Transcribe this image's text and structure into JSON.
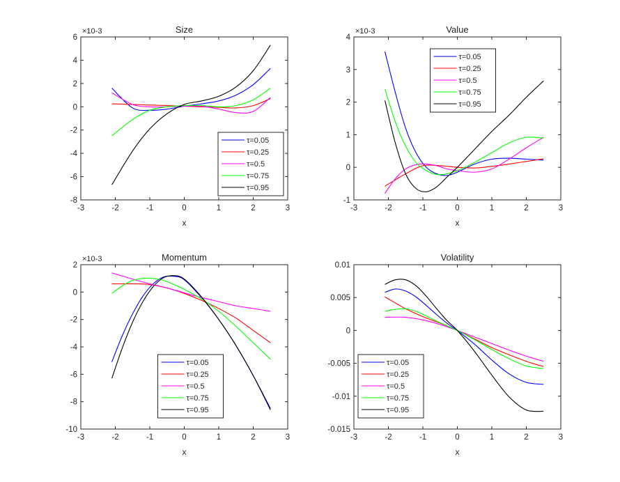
{
  "chart_data": [
    {
      "type": "line",
      "title": "Size",
      "xlabel": "x",
      "ylabel": "",
      "exponent": "×10-3",
      "xlim": [
        -3,
        3
      ],
      "ylim": [
        -8,
        6
      ],
      "xticks": [
        "-3",
        "-2",
        "-1",
        "0",
        "1",
        "2",
        "3"
      ],
      "yticks": [
        "-8",
        "-6",
        "-4",
        "-2",
        "0",
        "2",
        "4",
        "6"
      ],
      "legend_position": "bottom-right",
      "series": [
        {
          "name": "τ=0.05",
          "color": "#0000ff",
          "x": [
            -2.1,
            -1.5,
            -1,
            -0.5,
            0,
            0.5,
            1,
            1.5,
            2,
            2.5
          ],
          "y": [
            1.6,
            -0.1,
            -0.3,
            -0.2,
            0.05,
            0.25,
            0.5,
            1.0,
            1.9,
            3.3
          ]
        },
        {
          "name": "τ=0.25",
          "color": "#ff0000",
          "x": [
            -2.1,
            -1.5,
            -1,
            -0.5,
            0,
            0.5,
            1,
            1.5,
            2,
            2.5
          ],
          "y": [
            0.25,
            0.2,
            0.15,
            0.1,
            0.05,
            0.0,
            -0.05,
            -0.1,
            0.1,
            0.7
          ]
        },
        {
          "name": "τ=0.5",
          "color": "#ff00ff",
          "x": [
            -2.1,
            -1.5,
            -1,
            -0.5,
            0,
            0.5,
            1,
            1.5,
            2,
            2.5
          ],
          "y": [
            1.2,
            0.2,
            0.0,
            0.0,
            0.05,
            0.05,
            -0.2,
            -0.5,
            -0.4,
            0.8
          ]
        },
        {
          "name": "τ=0.75",
          "color": "#00ff00",
          "x": [
            -2.1,
            -1.5,
            -1,
            -0.5,
            0,
            0.5,
            1,
            1.5,
            2,
            2.5
          ],
          "y": [
            -2.5,
            -1.1,
            -0.3,
            0.0,
            0.1,
            0.1,
            0.0,
            0.1,
            0.6,
            1.6
          ]
        },
        {
          "name": "τ=0.95",
          "color": "#000000",
          "x": [
            -2.1,
            -1.5,
            -1,
            -0.5,
            0,
            0.5,
            1,
            1.5,
            2,
            2.5
          ],
          "y": [
            -6.7,
            -3.8,
            -1.9,
            -0.6,
            0.2,
            0.5,
            0.9,
            1.7,
            3.1,
            5.3
          ]
        }
      ]
    },
    {
      "type": "line",
      "title": "Value",
      "xlabel": "x",
      "ylabel": "",
      "exponent": "×10-3",
      "xlim": [
        -3,
        3
      ],
      "ylim": [
        -1,
        4
      ],
      "xticks": [
        "-3",
        "-2",
        "-1",
        "0",
        "1",
        "2",
        "3"
      ],
      "yticks": [
        "-1",
        "0",
        "1",
        "2",
        "3",
        "4"
      ],
      "legend_position": "top-center",
      "series": [
        {
          "name": "τ=0.05",
          "color": "#0000ff",
          "x": [
            -2.1,
            -1.8,
            -1.5,
            -1.2,
            -0.9,
            -0.6,
            -0.3,
            0,
            0.5,
            1,
            1.5,
            2,
            2.5
          ],
          "y": [
            3.55,
            2.3,
            1.2,
            0.45,
            0.0,
            -0.2,
            -0.25,
            -0.15,
            0.1,
            0.25,
            0.28,
            0.25,
            0.22
          ]
        },
        {
          "name": "τ=0.25",
          "color": "#ff0000",
          "x": [
            -2.1,
            -1.5,
            -1,
            -0.5,
            0,
            0.5,
            1,
            1.5,
            2,
            2.5
          ],
          "y": [
            -0.58,
            -0.2,
            0.05,
            0.05,
            0.0,
            -0.02,
            0.03,
            0.1,
            0.18,
            0.26
          ]
        },
        {
          "name": "τ=0.5",
          "color": "#ff00ff",
          "x": [
            -2.1,
            -1.8,
            -1.5,
            -1.2,
            -0.9,
            -0.6,
            -0.3,
            0,
            0.5,
            1,
            1.5,
            2,
            2.5
          ],
          "y": [
            -0.8,
            -0.35,
            -0.05,
            0.08,
            0.1,
            0.05,
            -0.05,
            -0.1,
            -0.15,
            -0.05,
            0.25,
            0.6,
            0.92
          ]
        },
        {
          "name": "τ=0.75",
          "color": "#00ff00",
          "x": [
            -2.1,
            -1.8,
            -1.5,
            -1.2,
            -0.9,
            -0.6,
            -0.3,
            0,
            0.5,
            1,
            1.5,
            2,
            2.5
          ],
          "y": [
            2.4,
            1.4,
            0.65,
            0.15,
            -0.1,
            -0.22,
            -0.2,
            -0.1,
            0.15,
            0.45,
            0.75,
            0.92,
            0.9
          ]
        },
        {
          "name": "τ=0.95",
          "color": "#000000",
          "x": [
            -2.1,
            -1.8,
            -1.5,
            -1.2,
            -0.9,
            -0.6,
            -0.3,
            0,
            0.5,
            1,
            1.5,
            2,
            2.5
          ],
          "y": [
            2.05,
            0.75,
            -0.2,
            -0.65,
            -0.75,
            -0.6,
            -0.3,
            0.0,
            0.55,
            1.1,
            1.6,
            2.15,
            2.65
          ]
        }
      ]
    },
    {
      "type": "line",
      "title": "Momentum",
      "xlabel": "x",
      "ylabel": "",
      "exponent": "×10-3",
      "xlim": [
        -3,
        3
      ],
      "ylim": [
        -10,
        2
      ],
      "xticks": [
        "-3",
        "-2",
        "-1",
        "0",
        "1",
        "2",
        "3"
      ],
      "yticks": [
        "-10",
        "-8",
        "-6",
        "-4",
        "-2",
        "0",
        "2"
      ],
      "legend_position": "bottom-center",
      "series": [
        {
          "name": "τ=0.05",
          "color": "#0000ff",
          "x": [
            -2.1,
            -1.8,
            -1.5,
            -1.2,
            -0.9,
            -0.6,
            -0.3,
            0,
            0.5,
            1,
            1.5,
            2,
            2.5
          ],
          "y": [
            -5.1,
            -3.2,
            -1.6,
            -0.3,
            0.6,
            1.1,
            1.15,
            0.9,
            -0.4,
            -2.0,
            -3.9,
            -6.1,
            -8.5
          ]
        },
        {
          "name": "τ=0.25",
          "color": "#ff0000",
          "x": [
            -2.1,
            -1.5,
            -1,
            -0.5,
            0,
            0.5,
            1,
            1.5,
            2,
            2.5
          ],
          "y": [
            0.6,
            0.6,
            0.55,
            0.3,
            -0.1,
            -0.6,
            -1.2,
            -1.9,
            -2.8,
            -3.7
          ]
        },
        {
          "name": "τ=0.5",
          "color": "#ff00ff",
          "x": [
            -2.1,
            -1.5,
            -1,
            -0.5,
            0,
            0.5,
            1,
            1.5,
            2,
            2.5
          ],
          "y": [
            1.4,
            0.95,
            0.6,
            0.3,
            -0.05,
            -0.4,
            -0.7,
            -1.0,
            -1.2,
            -1.4
          ]
        },
        {
          "name": "τ=0.75",
          "color": "#00ff00",
          "x": [
            -2.1,
            -1.8,
            -1.5,
            -1.2,
            -0.9,
            -0.6,
            -0.3,
            0,
            0.5,
            1,
            1.5,
            2,
            2.5
          ],
          "y": [
            -0.1,
            0.45,
            0.85,
            1.0,
            1.0,
            0.85,
            0.55,
            0.2,
            -0.5,
            -1.4,
            -2.5,
            -3.7,
            -4.9
          ]
        },
        {
          "name": "τ=0.95",
          "color": "#000000",
          "x": [
            -2.1,
            -1.8,
            -1.5,
            -1.2,
            -0.9,
            -0.6,
            -0.3,
            0,
            0.5,
            1,
            1.5,
            2,
            2.5
          ],
          "y": [
            -6.3,
            -4.1,
            -2.2,
            -0.7,
            0.4,
            1.05,
            1.2,
            0.95,
            -0.35,
            -2.0,
            -3.9,
            -6.1,
            -8.6
          ]
        }
      ]
    },
    {
      "type": "line",
      "title": "Volatility",
      "xlabel": "x",
      "ylabel": "",
      "exponent": "",
      "xlim": [
        -3,
        3
      ],
      "ylim": [
        -0.015,
        0.01
      ],
      "xticks": [
        "-3",
        "-2",
        "-1",
        "0",
        "1",
        "2",
        "3"
      ],
      "yticks": [
        "-0.015",
        "-0.01",
        "-0.005",
        "0",
        "0.005",
        "0.01"
      ],
      "legend_position": "bottom-left",
      "series": [
        {
          "name": "τ=0.05",
          "color": "#0000ff",
          "x": [
            -2.1,
            -1.8,
            -1.5,
            -1.2,
            -0.9,
            -0.6,
            -0.3,
            0,
            0.5,
            1,
            1.5,
            2,
            2.5
          ],
          "y": [
            0.0058,
            0.0063,
            0.006,
            0.0051,
            0.0038,
            0.0024,
            0.0011,
            0.0,
            -0.0021,
            -0.0045,
            -0.0066,
            -0.0079,
            -0.0082
          ]
        },
        {
          "name": "τ=0.25",
          "color": "#ff0000",
          "x": [
            -2.1,
            -1.5,
            -1,
            -0.5,
            0,
            0.5,
            1,
            1.5,
            2,
            2.5
          ],
          "y": [
            0.0051,
            0.0033,
            0.0021,
            0.0011,
            0.0,
            -0.0013,
            -0.0026,
            -0.0037,
            -0.0047,
            -0.0055
          ]
        },
        {
          "name": "τ=0.5",
          "color": "#ff00ff",
          "x": [
            -2.1,
            -1.5,
            -1,
            -0.5,
            0,
            0.5,
            1,
            1.5,
            2,
            2.5
          ],
          "y": [
            0.002,
            0.002,
            0.0016,
            0.0009,
            0.0,
            -0.001,
            -0.002,
            -0.003,
            -0.0039,
            -0.0047
          ]
        },
        {
          "name": "τ=0.75",
          "color": "#00ff00",
          "x": [
            -2.1,
            -1.8,
            -1.5,
            -1.2,
            -0.9,
            -0.6,
            -0.3,
            0,
            0.5,
            1,
            1.5,
            2,
            2.5
          ],
          "y": [
            0.0029,
            0.0032,
            0.0033,
            0.0029,
            0.0022,
            0.0014,
            0.0007,
            0.0,
            -0.0014,
            -0.0029,
            -0.0043,
            -0.0054,
            -0.0058
          ]
        },
        {
          "name": "τ=0.95",
          "color": "#000000",
          "x": [
            -2.1,
            -1.8,
            -1.5,
            -1.2,
            -0.9,
            -0.6,
            -0.3,
            0,
            0.5,
            1,
            1.5,
            2,
            2.5
          ],
          "y": [
            0.007,
            0.0077,
            0.0077,
            0.0068,
            0.0052,
            0.0033,
            0.0015,
            0.0,
            -0.0032,
            -0.0068,
            -0.0101,
            -0.0121,
            -0.0123
          ]
        }
      ]
    }
  ]
}
